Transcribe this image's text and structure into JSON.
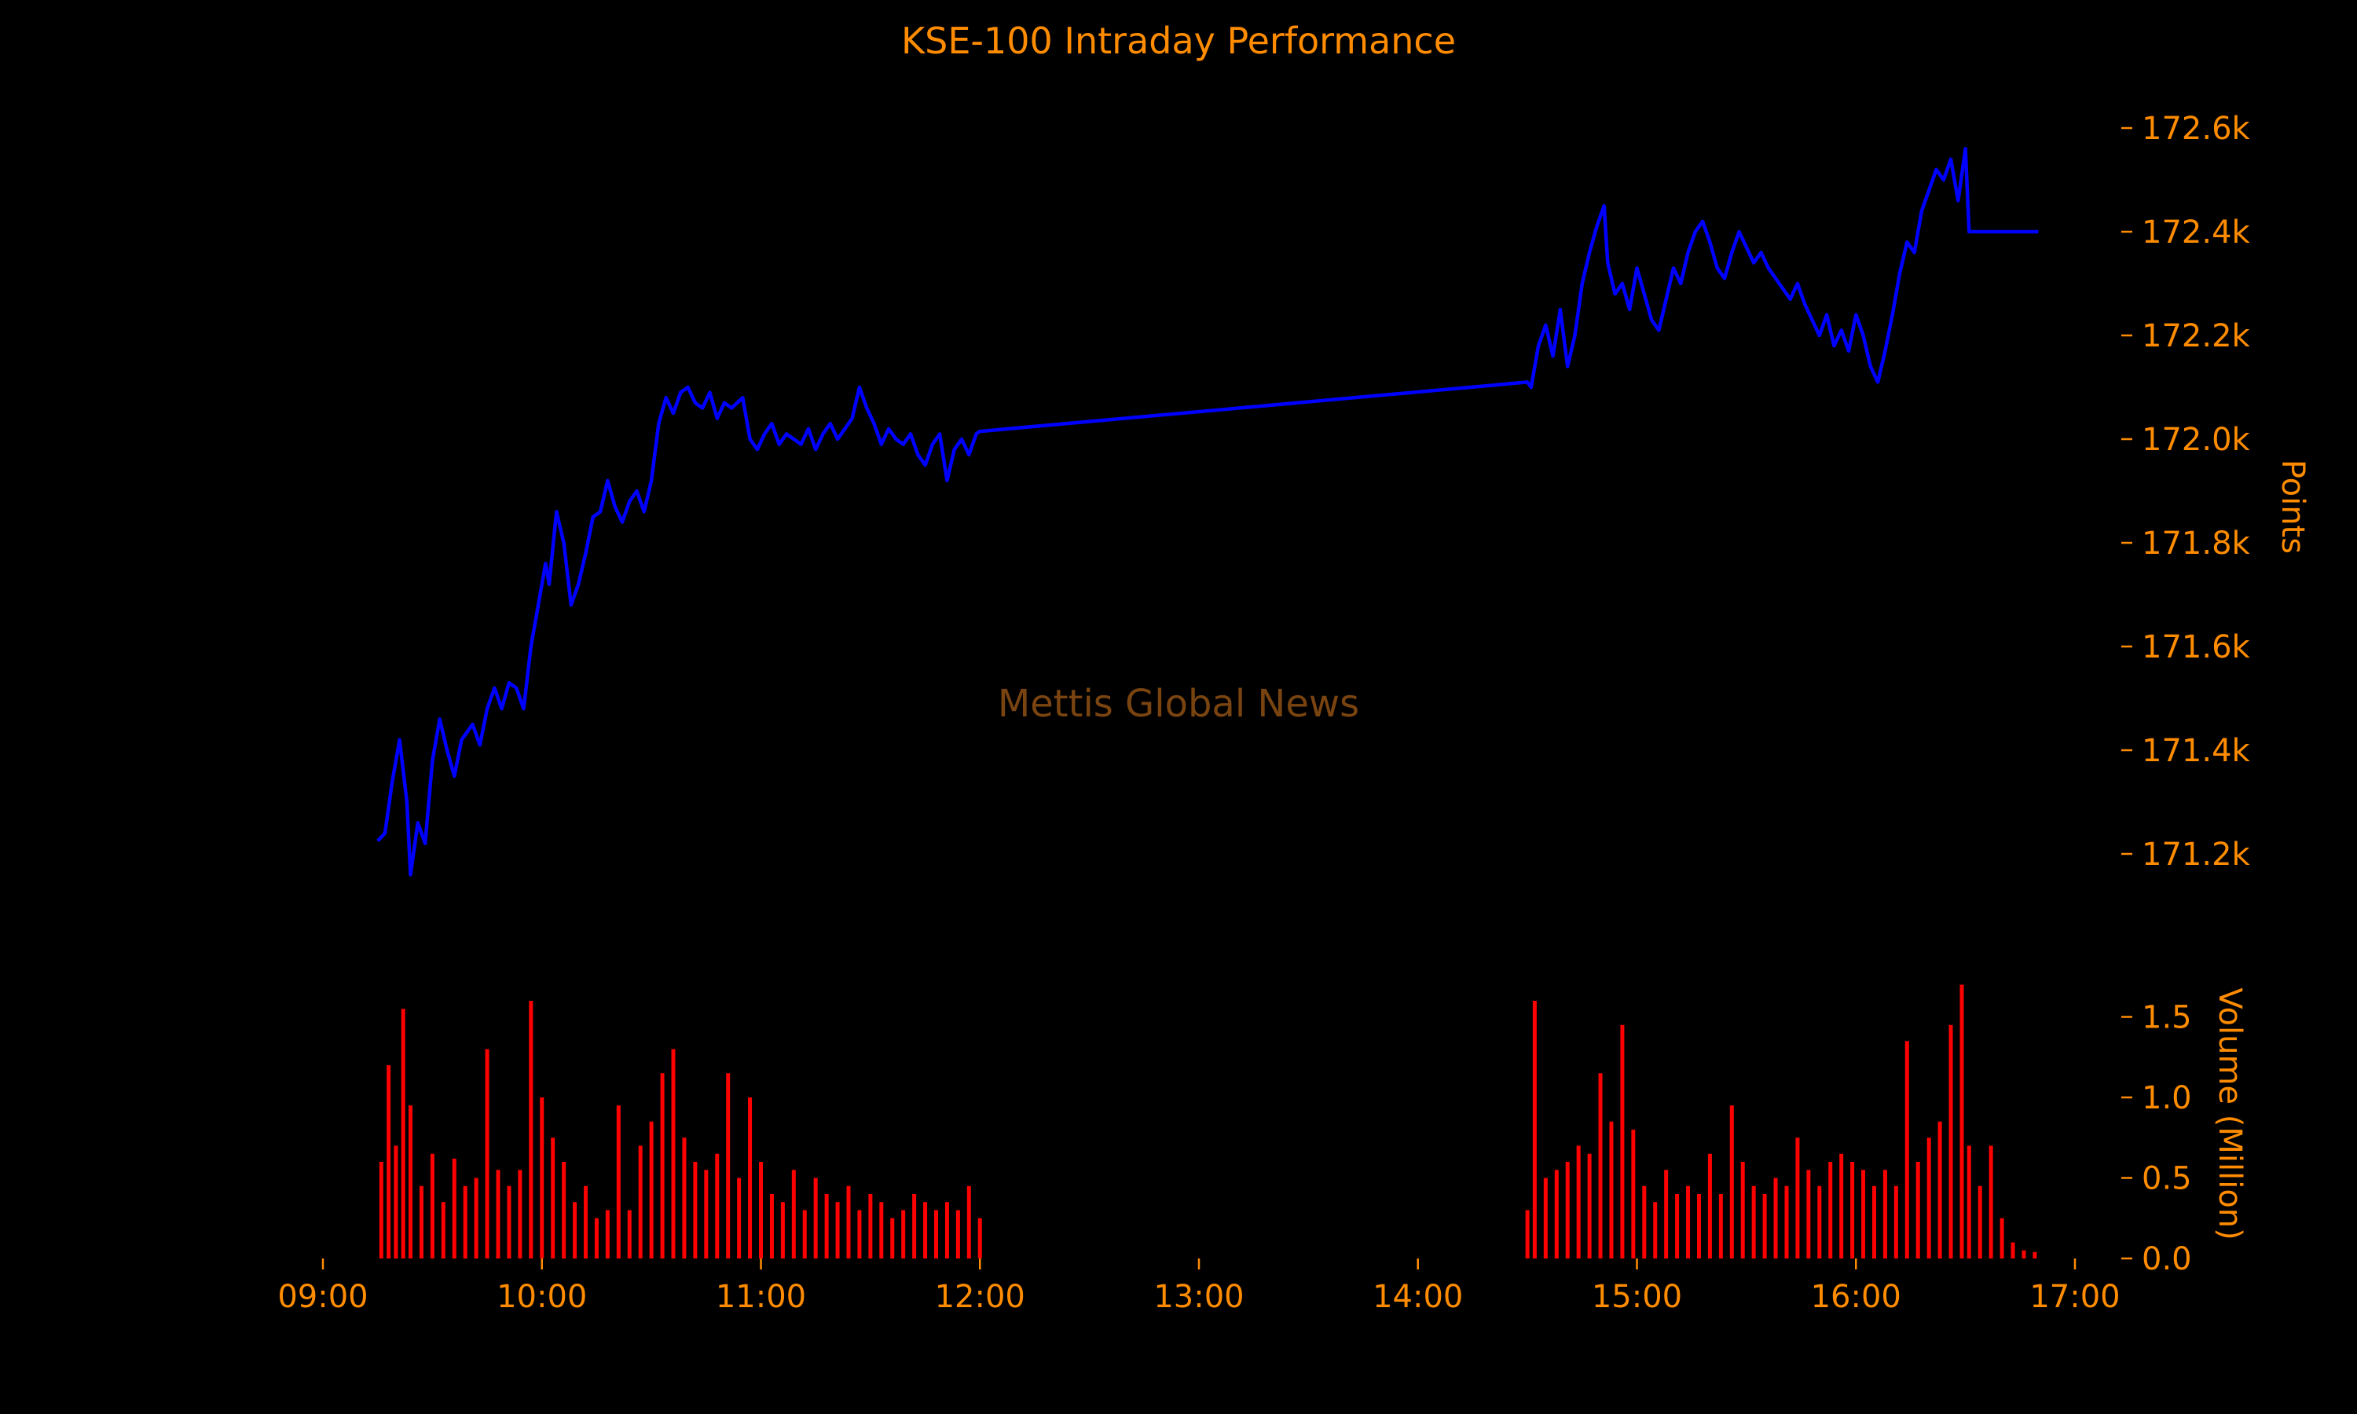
{
  "chart_data": [
    {
      "type": "line",
      "panel": "price",
      "title": "KSE-100 Intraday Performance",
      "ylabel": "Points",
      "watermark": "Mettis Global News",
      "ylim": [
        171150,
        172650
      ],
      "yticks": [
        171200,
        171400,
        171600,
        171800,
        172000,
        172200,
        172400,
        172600
      ],
      "ytick_labels": [
        "171.2k",
        "171.4k",
        "171.6k",
        "171.8k",
        "172.0k",
        "172.2k",
        "172.4k",
        "172.6k"
      ],
      "y_axis_position": "right",
      "line_color": "#0000ff",
      "series": [
        {
          "values": [
            [
              "09:15",
              171225
            ],
            [
              "09:17",
              171240
            ],
            [
              "09:19",
              171340
            ],
            [
              "09:21",
              171420
            ],
            [
              "09:23",
              171300
            ],
            [
              "09:24",
              171160
            ],
            [
              "09:26",
              171260
            ],
            [
              "09:28",
              171220
            ],
            [
              "09:30",
              171380
            ],
            [
              "09:32",
              171460
            ],
            [
              "09:34",
              171400
            ],
            [
              "09:36",
              171350
            ],
            [
              "09:38",
              171420
            ],
            [
              "09:41",
              171450
            ],
            [
              "09:43",
              171410
            ],
            [
              "09:45",
              171480
            ],
            [
              "09:47",
              171520
            ],
            [
              "09:49",
              171480
            ],
            [
              "09:51",
              171530
            ],
            [
              "09:53",
              171520
            ],
            [
              "09:55",
              171480
            ],
            [
              "09:57",
              171600
            ],
            [
              "09:59",
              171680
            ],
            [
              "10:01",
              171760
            ],
            [
              "10:02",
              171720
            ],
            [
              "10:04",
              171860
            ],
            [
              "10:06",
              171800
            ],
            [
              "10:08",
              171680
            ],
            [
              "10:10",
              171720
            ],
            [
              "10:12",
              171780
            ],
            [
              "10:14",
              171850
            ],
            [
              "10:16",
              171860
            ],
            [
              "10:18",
              171920
            ],
            [
              "10:20",
              171870
            ],
            [
              "10:22",
              171840
            ],
            [
              "10:24",
              171880
            ],
            [
              "10:26",
              171900
            ],
            [
              "10:28",
              171860
            ],
            [
              "10:30",
              171920
            ],
            [
              "10:32",
              172030
            ],
            [
              "10:34",
              172080
            ],
            [
              "10:36",
              172050
            ],
            [
              "10:38",
              172090
            ],
            [
              "10:40",
              172100
            ],
            [
              "10:42",
              172070
            ],
            [
              "10:44",
              172060
            ],
            [
              "10:46",
              172090
            ],
            [
              "10:48",
              172040
            ],
            [
              "10:50",
              172070
            ],
            [
              "10:52",
              172060
            ],
            [
              "10:55",
              172080
            ],
            [
              "10:57",
              172000
            ],
            [
              "10:59",
              171980
            ],
            [
              "11:01",
              172010
            ],
            [
              "11:03",
              172030
            ],
            [
              "11:05",
              171990
            ],
            [
              "11:07",
              172010
            ],
            [
              "11:09",
              172000
            ],
            [
              "11:11",
              171990
            ],
            [
              "11:13",
              172020
            ],
            [
              "11:15",
              171980
            ],
            [
              "11:17",
              172010
            ],
            [
              "11:19",
              172030
            ],
            [
              "11:21",
              172000
            ],
            [
              "11:23",
              172020
            ],
            [
              "11:25",
              172040
            ],
            [
              "11:27",
              172100
            ],
            [
              "11:29",
              172060
            ],
            [
              "11:31",
              172030
            ],
            [
              "11:33",
              171990
            ],
            [
              "11:35",
              172020
            ],
            [
              "11:37",
              172000
            ],
            [
              "11:39",
              171990
            ],
            [
              "11:41",
              172010
            ],
            [
              "11:43",
              171970
            ],
            [
              "11:45",
              171950
            ],
            [
              "11:47",
              171990
            ],
            [
              "11:49",
              172010
            ],
            [
              "11:51",
              171920
            ],
            [
              "11:53",
              171980
            ],
            [
              "11:55",
              172000
            ],
            [
              "11:57",
              171970
            ],
            [
              "11:59",
              172010
            ],
            [
              "12:00",
              172015
            ],
            [
              "14:30",
              172110
            ],
            [
              "14:31",
              172100
            ],
            [
              "14:33",
              172180
            ],
            [
              "14:35",
              172220
            ],
            [
              "14:37",
              172160
            ],
            [
              "14:39",
              172250
            ],
            [
              "14:41",
              172140
            ],
            [
              "14:43",
              172200
            ],
            [
              "14:45",
              172300
            ],
            [
              "14:47",
              172360
            ],
            [
              "14:49",
              172410
            ],
            [
              "14:51",
              172450
            ],
            [
              "14:52",
              172340
            ],
            [
              "14:54",
              172280
            ],
            [
              "14:56",
              172300
            ],
            [
              "14:58",
              172250
            ],
            [
              "15:00",
              172330
            ],
            [
              "15:02",
              172280
            ],
            [
              "15:04",
              172230
            ],
            [
              "15:06",
              172210
            ],
            [
              "15:08",
              172270
            ],
            [
              "15:10",
              172330
            ],
            [
              "15:12",
              172300
            ],
            [
              "15:14",
              172360
            ],
            [
              "15:16",
              172400
            ],
            [
              "15:18",
              172420
            ],
            [
              "15:20",
              172380
            ],
            [
              "15:22",
              172330
            ],
            [
              "15:24",
              172310
            ],
            [
              "15:26",
              172360
            ],
            [
              "15:28",
              172400
            ],
            [
              "15:30",
              172370
            ],
            [
              "15:32",
              172340
            ],
            [
              "15:34",
              172360
            ],
            [
              "15:36",
              172330
            ],
            [
              "15:38",
              172310
            ],
            [
              "15:40",
              172290
            ],
            [
              "15:42",
              172270
            ],
            [
              "15:44",
              172300
            ],
            [
              "15:46",
              172260
            ],
            [
              "15:48",
              172230
            ],
            [
              "15:50",
              172200
            ],
            [
              "15:52",
              172240
            ],
            [
              "15:54",
              172180
            ],
            [
              "15:56",
              172210
            ],
            [
              "15:58",
              172170
            ],
            [
              "16:00",
              172240
            ],
            [
              "16:02",
              172200
            ],
            [
              "16:04",
              172140
            ],
            [
              "16:06",
              172110
            ],
            [
              "16:08",
              172170
            ],
            [
              "16:10",
              172240
            ],
            [
              "16:12",
              172320
            ],
            [
              "16:14",
              172380
            ],
            [
              "16:16",
              172360
            ],
            [
              "16:18",
              172440
            ],
            [
              "16:20",
              172480
            ],
            [
              "16:22",
              172520
            ],
            [
              "16:24",
              172500
            ],
            [
              "16:26",
              172540
            ],
            [
              "16:28",
              172460
            ],
            [
              "16:30",
              172560
            ],
            [
              "16:31",
              172400
            ],
            [
              "16:50",
              172400
            ]
          ]
        }
      ]
    },
    {
      "type": "bar",
      "panel": "volume",
      "ylabel": "Volume (Million)",
      "ylim": [
        0,
        1.75
      ],
      "yticks": [
        0.0,
        0.5,
        1.0,
        1.5
      ],
      "ytick_labels": [
        "0.0",
        "0.5",
        "1.0",
        "1.5"
      ],
      "y_axis_position": "right",
      "bar_color": "#ff0000",
      "xticks": [
        "09:00",
        "10:00",
        "11:00",
        "12:00",
        "13:00",
        "14:00",
        "15:00",
        "16:00",
        "17:00"
      ],
      "x_range": [
        "09:00",
        "17:00"
      ],
      "series": [
        {
          "values": [
            [
              "09:16",
              0.6
            ],
            [
              "09:18",
              1.2
            ],
            [
              "09:20",
              0.7
            ],
            [
              "09:22",
              1.55
            ],
            [
              "09:24",
              0.95
            ],
            [
              "09:27",
              0.45
            ],
            [
              "09:30",
              0.65
            ],
            [
              "09:33",
              0.35
            ],
            [
              "09:36",
              0.62
            ],
            [
              "09:39",
              0.45
            ],
            [
              "09:42",
              0.5
            ],
            [
              "09:45",
              1.3
            ],
            [
              "09:48",
              0.55
            ],
            [
              "09:51",
              0.45
            ],
            [
              "09:54",
              0.55
            ],
            [
              "09:57",
              1.6
            ],
            [
              "10:00",
              1.0
            ],
            [
              "10:03",
              0.75
            ],
            [
              "10:06",
              0.6
            ],
            [
              "10:09",
              0.35
            ],
            [
              "10:12",
              0.45
            ],
            [
              "10:15",
              0.25
            ],
            [
              "10:18",
              0.3
            ],
            [
              "10:21",
              0.95
            ],
            [
              "10:24",
              0.3
            ],
            [
              "10:27",
              0.7
            ],
            [
              "10:30",
              0.85
            ],
            [
              "10:33",
              1.15
            ],
            [
              "10:36",
              1.3
            ],
            [
              "10:39",
              0.75
            ],
            [
              "10:42",
              0.6
            ],
            [
              "10:45",
              0.55
            ],
            [
              "10:48",
              0.65
            ],
            [
              "10:51",
              1.15
            ],
            [
              "10:54",
              0.5
            ],
            [
              "10:57",
              1.0
            ],
            [
              "11:00",
              0.6
            ],
            [
              "11:03",
              0.4
            ],
            [
              "11:06",
              0.35
            ],
            [
              "11:09",
              0.55
            ],
            [
              "11:12",
              0.3
            ],
            [
              "11:15",
              0.5
            ],
            [
              "11:18",
              0.4
            ],
            [
              "11:21",
              0.35
            ],
            [
              "11:24",
              0.45
            ],
            [
              "11:27",
              0.3
            ],
            [
              "11:30",
              0.4
            ],
            [
              "11:33",
              0.35
            ],
            [
              "11:36",
              0.25
            ],
            [
              "11:39",
              0.3
            ],
            [
              "11:42",
              0.4
            ],
            [
              "11:45",
              0.35
            ],
            [
              "11:48",
              0.3
            ],
            [
              "11:51",
              0.35
            ],
            [
              "11:54",
              0.3
            ],
            [
              "11:57",
              0.45
            ],
            [
              "12:00",
              0.25
            ],
            [
              "14:30",
              0.3
            ],
            [
              "14:32",
              1.6
            ],
            [
              "14:35",
              0.5
            ],
            [
              "14:38",
              0.55
            ],
            [
              "14:41",
              0.6
            ],
            [
              "14:44",
              0.7
            ],
            [
              "14:47",
              0.65
            ],
            [
              "14:50",
              1.15
            ],
            [
              "14:53",
              0.85
            ],
            [
              "14:56",
              1.45
            ],
            [
              "14:59",
              0.8
            ],
            [
              "15:02",
              0.45
            ],
            [
              "15:05",
              0.35
            ],
            [
              "15:08",
              0.55
            ],
            [
              "15:11",
              0.4
            ],
            [
              "15:14",
              0.45
            ],
            [
              "15:17",
              0.4
            ],
            [
              "15:20",
              0.65
            ],
            [
              "15:23",
              0.4
            ],
            [
              "15:26",
              0.95
            ],
            [
              "15:29",
              0.6
            ],
            [
              "15:32",
              0.45
            ],
            [
              "15:35",
              0.4
            ],
            [
              "15:38",
              0.5
            ],
            [
              "15:41",
              0.45
            ],
            [
              "15:44",
              0.75
            ],
            [
              "15:47",
              0.55
            ],
            [
              "15:50",
              0.45
            ],
            [
              "15:53",
              0.6
            ],
            [
              "15:56",
              0.65
            ],
            [
              "15:59",
              0.6
            ],
            [
              "16:02",
              0.55
            ],
            [
              "16:05",
              0.45
            ],
            [
              "16:08",
              0.55
            ],
            [
              "16:11",
              0.45
            ],
            [
              "16:14",
              1.35
            ],
            [
              "16:17",
              0.6
            ],
            [
              "16:20",
              0.75
            ],
            [
              "16:23",
              0.85
            ],
            [
              "16:26",
              1.45
            ],
            [
              "16:29",
              1.7
            ],
            [
              "16:31",
              0.7
            ],
            [
              "16:34",
              0.45
            ],
            [
              "16:37",
              0.7
            ],
            [
              "16:40",
              0.25
            ],
            [
              "16:43",
              0.1
            ],
            [
              "16:46",
              0.05
            ],
            [
              "16:49",
              0.04
            ]
          ]
        }
      ]
    }
  ]
}
